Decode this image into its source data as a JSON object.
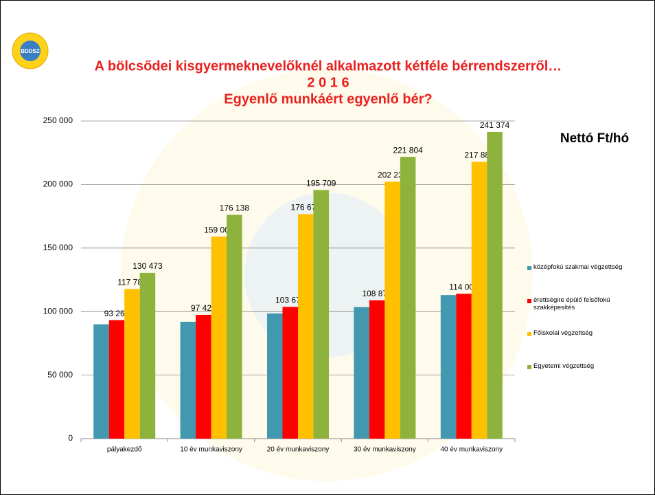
{
  "logo_text": "BDDSZ",
  "chart_data": {
    "type": "bar",
    "title": "A bölcsődei kisgyermeknevelőknél alkalmazott kétféle bérrendszerről…",
    "subtitle": "2 0 1 6",
    "subtitle2": "Egyenlő munkáért egyenlő bér?",
    "annotation": "Nettó Ft/hó",
    "categories": [
      "pályakezdő",
      "10 év munkaviszony",
      "20 év munkaviszony",
      "30 év munkaviszony",
      "40 év munkaviszony"
    ],
    "series": [
      {
        "name": "középfokú szakmai végzettség",
        "color": "#4198af",
        "values": [
          90000,
          92000,
          98500,
          103500,
          113000
        ]
      },
      {
        "name": "érettségire épülő felsőfokú szakképesítés",
        "color": "#ff0000",
        "values": [
          93260,
          97424,
          103670,
          108875,
          114000
        ],
        "value_labels": [
          "93 260",
          "97 424",
          "103 670",
          "108 875",
          "114 000"
        ]
      },
      {
        "name": "Főiskolai végzettség",
        "color": "#ffc000",
        "values": [
          117783,
          159007,
          176675,
          202231,
          217889
        ],
        "value_labels": [
          "117 783",
          "159 007",
          "176 675",
          "202 231",
          "217 889"
        ]
      },
      {
        "name": "Egyetemi végzettség",
        "color": "#8db33c",
        "values": [
          130473,
          176138,
          195709,
          221804,
          241374
        ],
        "value_labels": [
          "130 473",
          "176 138",
          "195 709",
          "221 804",
          "241 374"
        ]
      }
    ],
    "ylim": [
      0,
      250000
    ],
    "yticks": [
      0,
      {
        "value": 50000,
        "label": "50 000"
      },
      {
        "value": 100000,
        "label": "100 000"
      },
      {
        "value": 150000,
        "label": "150 000"
      },
      {
        "value": 200000,
        "label": "200 000"
      },
      {
        "value": 250000,
        "label": "250 000"
      }
    ],
    "grid": true,
    "legend": "right"
  }
}
